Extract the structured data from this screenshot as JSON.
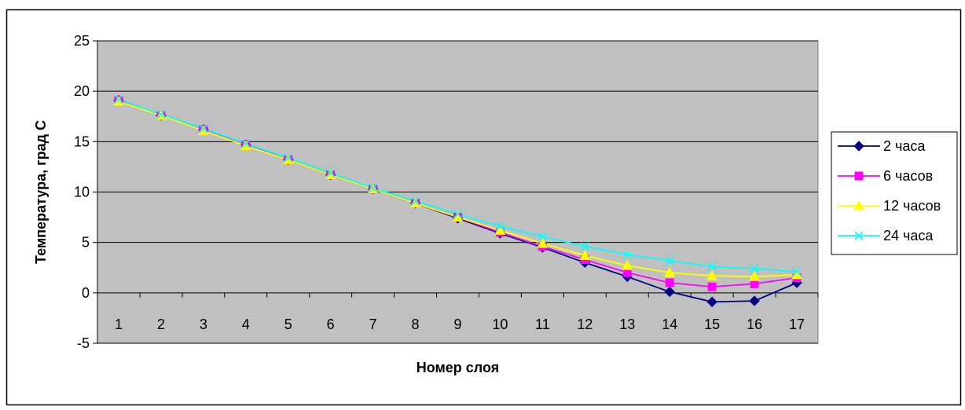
{
  "chart_data": {
    "type": "line",
    "title": "",
    "xlabel": "Номер слоя",
    "ylabel": "Температура, град С",
    "x": [
      1,
      2,
      3,
      4,
      5,
      6,
      7,
      8,
      9,
      10,
      11,
      12,
      13,
      14,
      15,
      16,
      17
    ],
    "ylim": [
      -5,
      25
    ],
    "yticks": [
      -5,
      0,
      5,
      10,
      15,
      20,
      25
    ],
    "grid": "horizontal",
    "legend_position": "right",
    "plot_background": "#c0c0c0",
    "series": [
      {
        "name": "2 часа",
        "color": "#000080",
        "marker": "diamond",
        "values": [
          19.1,
          17.6,
          16.2,
          14.7,
          13.2,
          11.7,
          10.3,
          8.9,
          7.4,
          5.9,
          4.5,
          3.0,
          1.6,
          0.1,
          -0.9,
          -0.8,
          1.0
        ]
      },
      {
        "name": "6 часов",
        "color": "#ff00ff",
        "marker": "square",
        "values": [
          19.1,
          17.6,
          16.2,
          14.7,
          13.2,
          11.7,
          10.3,
          8.9,
          7.5,
          6.0,
          4.6,
          3.3,
          2.0,
          1.0,
          0.6,
          0.9,
          1.5
        ]
      },
      {
        "name": "12 часов",
        "color": "#ffff00",
        "marker": "triangle",
        "values": [
          19.0,
          17.6,
          16.1,
          14.6,
          13.2,
          11.7,
          10.3,
          8.9,
          7.5,
          6.2,
          4.9,
          3.7,
          2.7,
          2.0,
          1.7,
          1.6,
          1.8
        ]
      },
      {
        "name": "24 часа",
        "color": "#00ffff",
        "marker": "x",
        "values": [
          19.2,
          17.7,
          16.3,
          14.8,
          13.4,
          11.9,
          10.4,
          9.1,
          7.8,
          6.6,
          5.6,
          4.6,
          3.8,
          3.2,
          2.6,
          2.4,
          2.1
        ]
      }
    ]
  }
}
